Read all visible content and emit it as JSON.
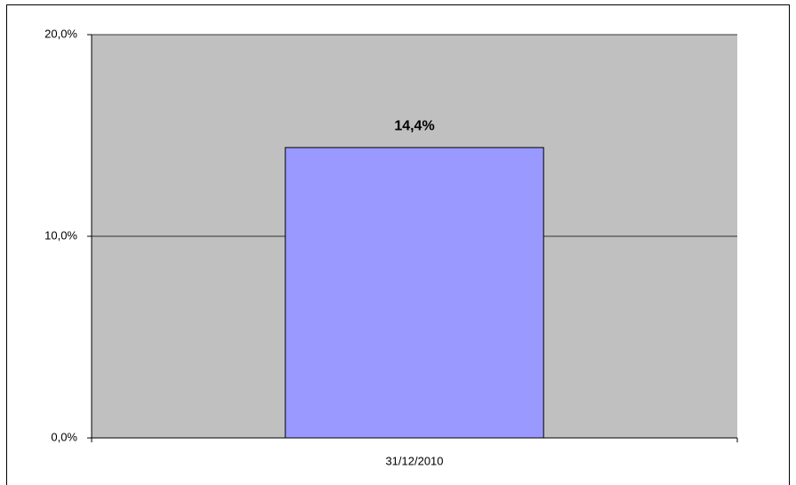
{
  "chart_data": {
    "type": "bar",
    "categories": [
      "31/12/2010"
    ],
    "values": [
      14.4
    ],
    "value_labels": [
      "14,4%"
    ],
    "color": "#9999ff",
    "plot_background": "#c0c0c0",
    "ylim": [
      0,
      20
    ],
    "yticks": [
      {
        "value": 0,
        "label": "0,0%"
      },
      {
        "value": 10,
        "label": "10,0%"
      },
      {
        "value": 20,
        "label": "20,0%"
      }
    ],
    "grid": true
  }
}
